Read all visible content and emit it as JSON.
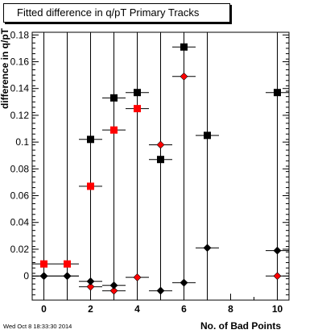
{
  "title": "Fitted difference in q/pT Primary Tracks",
  "timestamp": "Wed Oct  8 18:33:30 2014",
  "chart_data": {
    "type": "scatter",
    "title": "Fitted difference in q/pT Primary Tracks",
    "xlabel": "No. of Bad Points",
    "ylabel": "difference in q/pT",
    "xlim": [
      -0.5,
      10.5
    ],
    "ylim": [
      -0.018,
      0.182
    ],
    "x_ticks": [
      0,
      2,
      4,
      6,
      8,
      10
    ],
    "y_ticks": [
      0,
      0.02,
      0.04,
      0.06,
      0.08,
      0.1,
      0.12,
      0.14,
      0.16,
      0.18
    ],
    "y_tick_labels": [
      "0",
      "0.02",
      "0.04",
      "0.06",
      "0.08",
      "0.1",
      "0.12",
      "0.14",
      "0.16",
      "0.18"
    ],
    "grid": "vertical",
    "series": [
      {
        "marker": "square",
        "color": "#000000",
        "points": [
          [
            2,
            0.102
          ],
          [
            3,
            0.133
          ],
          [
            4,
            0.137
          ],
          [
            5,
            0.087
          ],
          [
            6,
            0.171
          ],
          [
            7,
            0.105
          ],
          [
            10,
            0.137
          ]
        ]
      },
      {
        "marker": "square",
        "color": "#ff0000",
        "points": [
          [
            0,
            0.009
          ],
          [
            1,
            0.009
          ],
          [
            2,
            0.067
          ],
          [
            3,
            0.109
          ],
          [
            4,
            0.125
          ]
        ]
      },
      {
        "marker": "diamond",
        "color": "#ff0000",
        "points": [
          [
            0,
            0.0
          ],
          [
            1,
            0.0
          ],
          [
            2,
            -0.008
          ],
          [
            3,
            -0.011
          ],
          [
            4,
            -0.001
          ],
          [
            5,
            0.098
          ],
          [
            6,
            0.149
          ],
          [
            10,
            0.0
          ]
        ]
      },
      {
        "marker": "diamond",
        "color": "#000000",
        "points": [
          [
            0,
            0.0
          ],
          [
            1,
            0.0
          ],
          [
            2,
            -0.004
          ],
          [
            3,
            -0.007
          ],
          [
            5,
            -0.011
          ],
          [
            6,
            -0.005
          ],
          [
            7,
            0.021
          ],
          [
            10,
            0.019
          ]
        ]
      }
    ]
  }
}
